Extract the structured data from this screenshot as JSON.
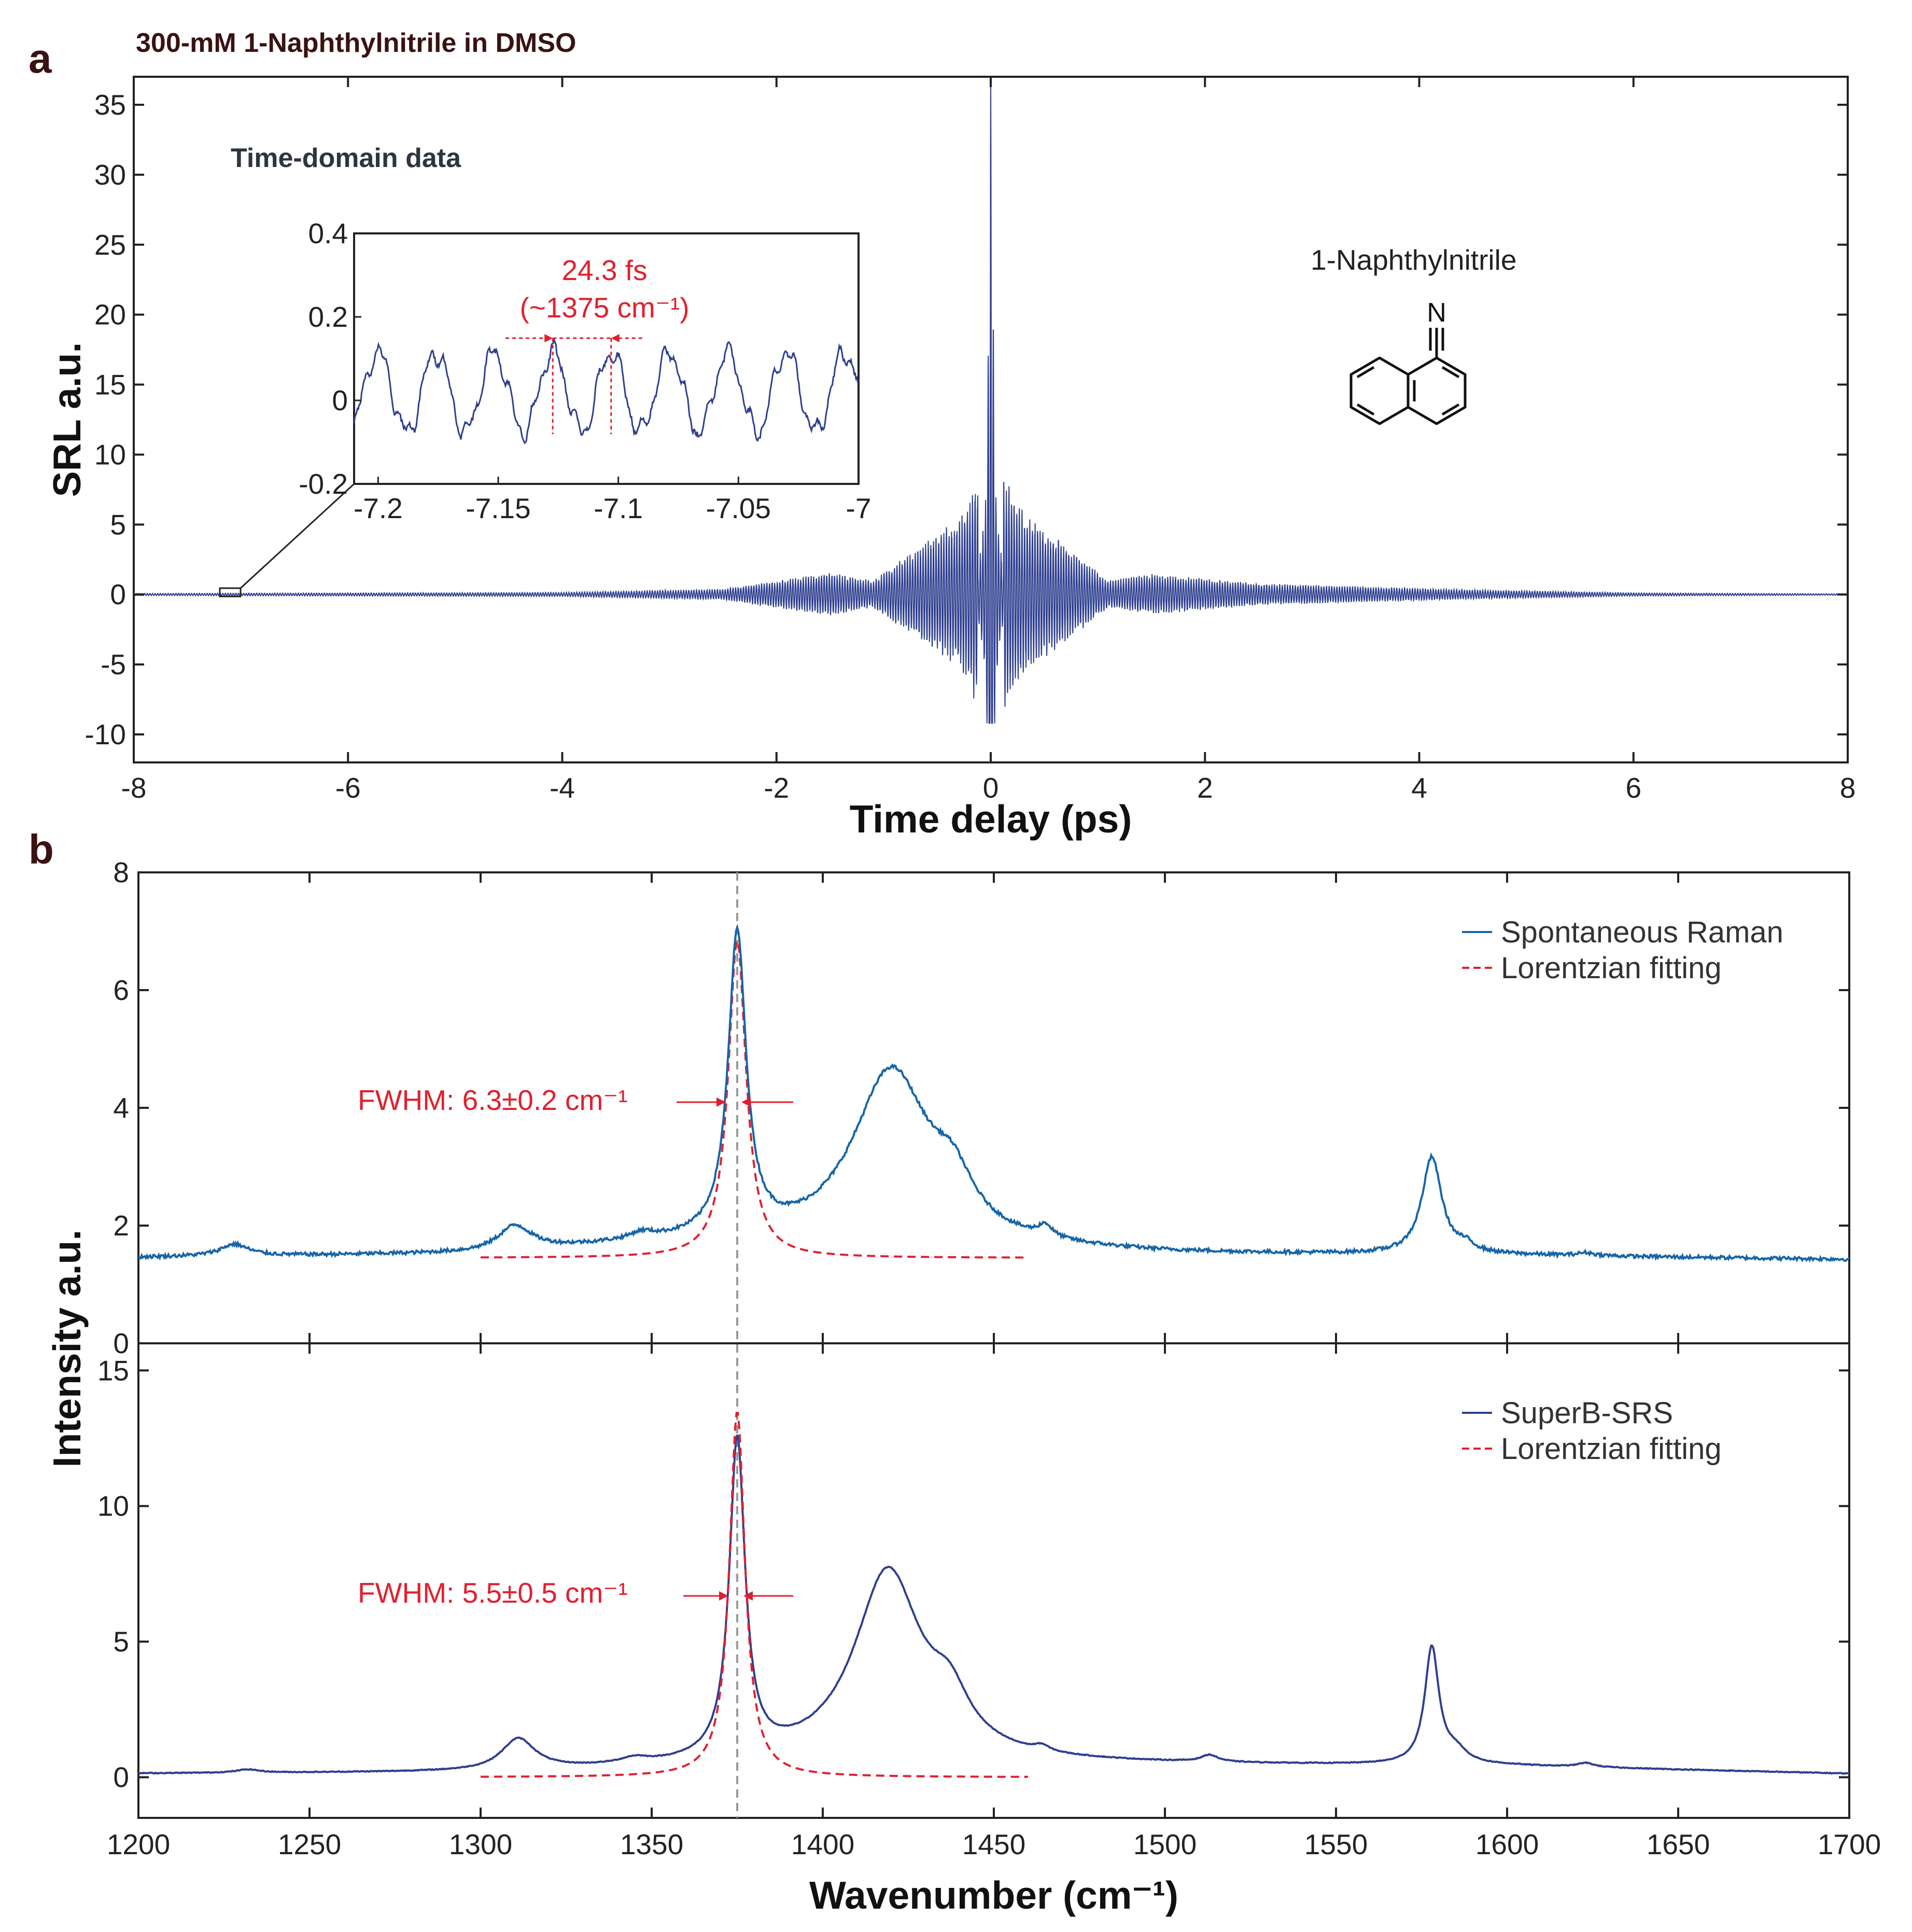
{
  "header": "300-mM 1-Naphthylnitrile in DMSO",
  "panel_a": {
    "letter": "a",
    "inset_title": "Time-domain data",
    "molecule_label": "1-Naphthylnitrile",
    "molecule_atom": "N",
    "inset_annotation_line1": "24.3 fs",
    "inset_annotation_line2": "(~1375 cm⁻¹)"
  },
  "panel_b": {
    "letter": "b",
    "fwhm_top": "FWHM: 6.3±0.2 cm⁻¹",
    "fwhm_bottom": "FWHM: 5.5±0.5 cm⁻¹"
  },
  "colors": {
    "srs_line": "#2e3f8f",
    "raman_line": "#1665a8",
    "fit_line": "#e0202e",
    "annotation": "#e0202e",
    "guide": "#999999"
  },
  "chart_data": [
    {
      "id": "time-domain",
      "type": "line",
      "title": "",
      "xlabel": "Time delay (ps)",
      "ylabel": "SRL a.u.",
      "xlim": [
        -8,
        8
      ],
      "ylim": [
        -12,
        37
      ],
      "xticks": [
        -8,
        -6,
        -4,
        -2,
        0,
        2,
        4,
        6,
        8
      ],
      "xtick_labels": [
        "-8",
        "-6",
        "-4",
        "-2",
        "0",
        "2",
        "4",
        "6",
        "8"
      ],
      "yticks": [
        -10,
        -5,
        0,
        5,
        10,
        15,
        20,
        25,
        30,
        35
      ],
      "ytick_labels": [
        "-10",
        "-5",
        "0",
        "5",
        "10",
        "15",
        "20",
        "25",
        "30",
        "35"
      ],
      "series": [
        {
          "description": "oscillating SRL signal, period 24.3 fs",
          "period_fs": 24.3,
          "envelope_points": [
            {
              "t": -8.0,
              "amp": 0.08
            },
            {
              "t": -4.0,
              "amp": 0.15
            },
            {
              "t": -2.5,
              "amp": 0.4
            },
            {
              "t": -1.5,
              "amp": 1.6
            },
            {
              "t": -1.1,
              "amp": 1.0
            },
            {
              "t": -0.7,
              "amp": 3.3
            },
            {
              "t": -0.3,
              "amp": 5.5
            },
            {
              "t": -0.1,
              "amp": 9.0
            },
            {
              "t": 0.0,
              "amp": 31.8
            },
            {
              "t": 0.1,
              "amp": 9.0
            },
            {
              "t": 0.3,
              "amp": 6.0
            },
            {
              "t": 0.7,
              "amp": 3.6
            },
            {
              "t": 1.1,
              "amp": 1.0
            },
            {
              "t": 1.5,
              "amp": 1.5
            },
            {
              "t": 2.5,
              "amp": 0.8
            },
            {
              "t": 4.5,
              "amp": 0.35
            },
            {
              "t": 6.0,
              "amp": 0.12
            },
            {
              "t": 8.0,
              "amp": 0.05
            }
          ]
        }
      ]
    },
    {
      "id": "time-domain-inset",
      "type": "line",
      "xlim": [
        -7.21,
        -7.0
      ],
      "ylim": [
        -0.2,
        0.4
      ],
      "xticks": [
        -7.2,
        -7.15,
        -7.1,
        -7.05,
        -7
      ],
      "xtick_labels": [
        "-7.2",
        "-7.15",
        "-7.1",
        "-7.05",
        "-7"
      ],
      "yticks": [
        -0.2,
        0,
        0.2,
        0.4
      ],
      "ytick_labels": [
        "-0.2",
        "0",
        "0.2",
        "0.4"
      ],
      "markers_x": [
        -7.1273,
        -7.103
      ]
    },
    {
      "id": "spontaneous-raman",
      "type": "line",
      "xlim": [
        1200,
        1700
      ],
      "ylim": [
        0,
        8
      ],
      "yticks": [
        0,
        2,
        4,
        6,
        8
      ],
      "ytick_labels": [
        "0",
        "2",
        "4",
        "6",
        "8"
      ],
      "legend_position": "top-right",
      "vline_x": 1375,
      "series": [
        {
          "name": "Spontaneous Raman",
          "baseline": [
            [
              1200,
              1.45
            ],
            [
              1300,
              1.5
            ],
            [
              1350,
              1.65
            ],
            [
              1400,
              1.6
            ],
            [
              1500,
              1.5
            ],
            [
              1600,
              1.48
            ],
            [
              1700,
              1.42
            ]
          ],
          "peaks": [
            {
              "center": 1228,
              "height": 0.2,
              "width": 10
            },
            {
              "center": 1310,
              "height": 0.42,
              "width": 12
            },
            {
              "center": 1347,
              "height": 0.1,
              "width": 8
            },
            {
              "center": 1375,
              "height": 5.15,
              "width": 6.3
            },
            {
              "center": 1420,
              "height": 3.0,
              "width": 28
            },
            {
              "center": 1438,
              "height": 0.7,
              "width": 14
            },
            {
              "center": 1465,
              "height": 0.2,
              "width": 5
            },
            {
              "center": 1578,
              "height": 1.65,
              "width": 7
            },
            {
              "center": 1588,
              "height": 0.12,
              "width": 6
            },
            {
              "center": 1623,
              "height": 0.05,
              "width": 6
            }
          ]
        },
        {
          "name": "Lorentzian fitting",
          "x_range": [
            1300,
            1460
          ],
          "baseline": 1.45,
          "center": 1375,
          "fwhm": 6.3,
          "peak": 6.85
        }
      ]
    },
    {
      "id": "superb-srs",
      "type": "line",
      "xlim": [
        1200,
        1700
      ],
      "ylim": [
        -1.5,
        16
      ],
      "xlabel": "Wavenumber (cm⁻¹)",
      "ylabel": "Intensity a.u.",
      "xticks": [
        1200,
        1250,
        1300,
        1350,
        1400,
        1450,
        1500,
        1550,
        1600,
        1650,
        1700
      ],
      "xtick_labels": [
        "1200",
        "1250",
        "1300",
        "1350",
        "1400",
        "1450",
        "1500",
        "1550",
        "1600",
        "1650",
        "1700"
      ],
      "yticks": [
        0,
        5,
        10,
        15
      ],
      "ytick_labels": [
        "0",
        "5",
        "10",
        "15"
      ],
      "legend_position": "top-right",
      "vline_x": 1375,
      "series": [
        {
          "name": "SuperB-SRS",
          "baseline": [
            [
              1200,
              0.12
            ],
            [
              1300,
              0.15
            ],
            [
              1350,
              0.3
            ],
            [
              1400,
              0.5
            ],
            [
              1500,
              0.45
            ],
            [
              1600,
              0.4
            ],
            [
              1700,
              0.12
            ]
          ],
          "peaks": [
            {
              "center": 1232,
              "height": 0.12,
              "width": 8
            },
            {
              "center": 1311,
              "height": 1.15,
              "width": 12
            },
            {
              "center": 1345,
              "height": 0.2,
              "width": 10
            },
            {
              "center": 1375,
              "height": 11.7,
              "width": 5.5
            },
            {
              "center": 1419,
              "height": 7.0,
              "width": 24
            },
            {
              "center": 1437,
              "height": 1.6,
              "width": 14
            },
            {
              "center": 1464,
              "height": 0.2,
              "width": 5
            },
            {
              "center": 1513,
              "height": 0.25,
              "width": 6
            },
            {
              "center": 1578,
              "height": 4.3,
              "width": 5
            },
            {
              "center": 1585,
              "height": 0.45,
              "width": 8
            },
            {
              "center": 1623,
              "height": 0.15,
              "width": 6
            }
          ]
        },
        {
          "name": "Lorentzian fitting",
          "x_range": [
            1300,
            1460
          ],
          "baseline": 0.0,
          "center": 1375,
          "fwhm": 5.5,
          "peak": 13.5
        }
      ]
    }
  ]
}
